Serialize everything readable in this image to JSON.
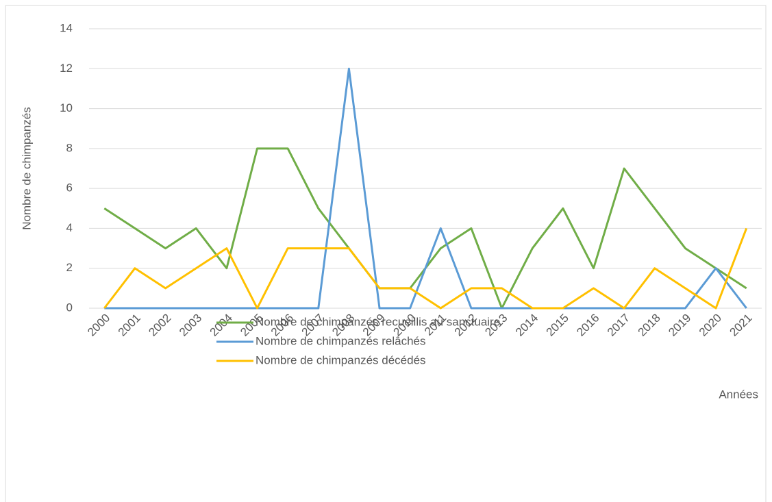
{
  "chart_data": {
    "type": "line",
    "y_label": "Nombre de chimpanzés",
    "x_label": "Années",
    "categories": [
      "2000",
      "2001",
      "2002",
      "2003",
      "2004",
      "2005",
      "2006",
      "2007",
      "2008",
      "2009",
      "2010",
      "2011",
      "2012",
      "2013",
      "2014",
      "2015",
      "2016",
      "2017",
      "2018",
      "2019",
      "2020",
      "2021"
    ],
    "series": [
      {
        "name": "Nombre de chimpanzés recueillis au sanctuaire",
        "color": "#70ad47",
        "values": [
          5,
          4,
          3,
          4,
          2,
          8,
          8,
          5,
          3,
          1,
          1,
          3,
          4,
          0,
          3,
          5,
          2,
          7,
          5,
          3,
          2,
          1
        ]
      },
      {
        "name": "Nombre de chimpanzés relâchés",
        "color": "#5b9bd5",
        "values": [
          0,
          0,
          0,
          0,
          0,
          0,
          0,
          0,
          12,
          0,
          0,
          4,
          0,
          0,
          0,
          0,
          0,
          0,
          0,
          0,
          2,
          0
        ]
      },
      {
        "name": "Nombre de chimpanzés décédés",
        "color": "#ffc000",
        "values": [
          0,
          2,
          1,
          2,
          3,
          0,
          3,
          3,
          3,
          1,
          1,
          0,
          1,
          1,
          0,
          0,
          1,
          0,
          2,
          1,
          0,
          4
        ]
      }
    ],
    "ylim": [
      0,
      14
    ],
    "yticks": [
      0,
      2,
      4,
      6,
      8,
      10,
      12,
      14
    ],
    "grid": true
  }
}
